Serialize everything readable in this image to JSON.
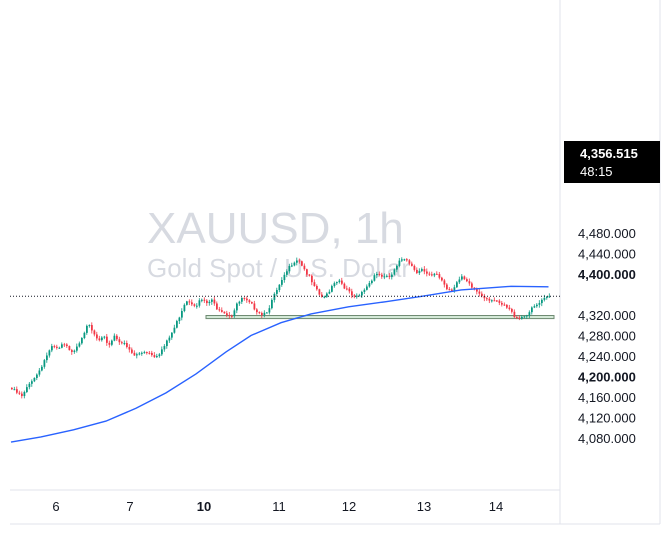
{
  "chart_data": {
    "type": "candlestick",
    "title": "XAUUSD, 1h",
    "subtitle": "Gold Spot / U.S. Dollar",
    "ylim": [
      4050,
      4500
    ],
    "y_ticks": [
      {
        "value": 4480,
        "label": "4,480.000",
        "bold": false
      },
      {
        "value": 4440,
        "label": "4,440.000",
        "bold": false
      },
      {
        "value": 4400,
        "label": "4,400.000",
        "bold": true
      },
      {
        "value": 4320,
        "label": "4,320.000",
        "bold": false
      },
      {
        "value": 4280,
        "label": "4,280.000",
        "bold": false
      },
      {
        "value": 4240,
        "label": "4,240.000",
        "bold": false
      },
      {
        "value": 4200,
        "label": "4,200.000",
        "bold": true
      },
      {
        "value": 4160,
        "label": "4,160.000",
        "bold": false
      },
      {
        "value": 4120,
        "label": "4,120.000",
        "bold": false
      },
      {
        "value": 4080,
        "label": "4,080.000",
        "bold": false
      }
    ],
    "x_ticks": [
      {
        "label": "6",
        "bold": false
      },
      {
        "label": "7",
        "bold": false
      },
      {
        "label": "10",
        "bold": true
      },
      {
        "label": "11",
        "bold": false
      },
      {
        "label": "12",
        "bold": false
      },
      {
        "label": "13",
        "bold": false
      },
      {
        "label": "14",
        "bold": false
      }
    ],
    "current_price": {
      "value": 4356.515,
      "label": "4,356.515",
      "timer": "48:15"
    },
    "support_zone": {
      "low": 4313,
      "high": 4319
    },
    "ohlc_waypoints": [
      4175,
      4168,
      4160,
      4178,
      4195,
      4205,
      4225,
      4245,
      4258,
      4252,
      4262,
      4255,
      4250,
      4265,
      4285,
      4300,
      4282,
      4268,
      4275,
      4262,
      4280,
      4270,
      4262,
      4250,
      4240,
      4245,
      4250,
      4246,
      4240,
      4248,
      4262,
      4280,
      4300,
      4325,
      4350,
      4345,
      4340,
      4350,
      4342,
      4348,
      4335,
      4330,
      4322,
      4320,
      4340,
      4352,
      4345,
      4338,
      4328,
      4322,
      4330,
      4352,
      4372,
      4390,
      4410,
      4425,
      4430,
      4412,
      4395,
      4375,
      4360,
      4352,
      4368,
      4385,
      4388,
      4375,
      4362,
      4352,
      4358,
      4372,
      4385,
      4402,
      4398,
      4392,
      4395,
      4410,
      4428,
      4432,
      4418,
      4405,
      4410,
      4398,
      4395,
      4400,
      4388,
      4372,
      4370,
      4385,
      4392,
      4382,
      4372,
      4365,
      4358,
      4352,
      4350,
      4342,
      4338,
      4332,
      4320,
      4315,
      4318,
      4325,
      4335,
      4342,
      4350,
      4356.515
    ],
    "ma_line": [
      [
        0,
        4072
      ],
      [
        12,
        4082
      ],
      [
        25,
        4096
      ],
      [
        38,
        4113
      ],
      [
        50,
        4138
      ],
      [
        62,
        4168
      ],
      [
        74,
        4205
      ],
      [
        86,
        4248
      ],
      [
        96,
        4280
      ],
      [
        108,
        4305
      ],
      [
        120,
        4322
      ],
      [
        135,
        4336
      ],
      [
        150,
        4346
      ],
      [
        165,
        4357
      ],
      [
        180,
        4369
      ],
      [
        200,
        4376
      ],
      [
        215,
        4375
      ]
    ],
    "bar_count": 216
  }
}
